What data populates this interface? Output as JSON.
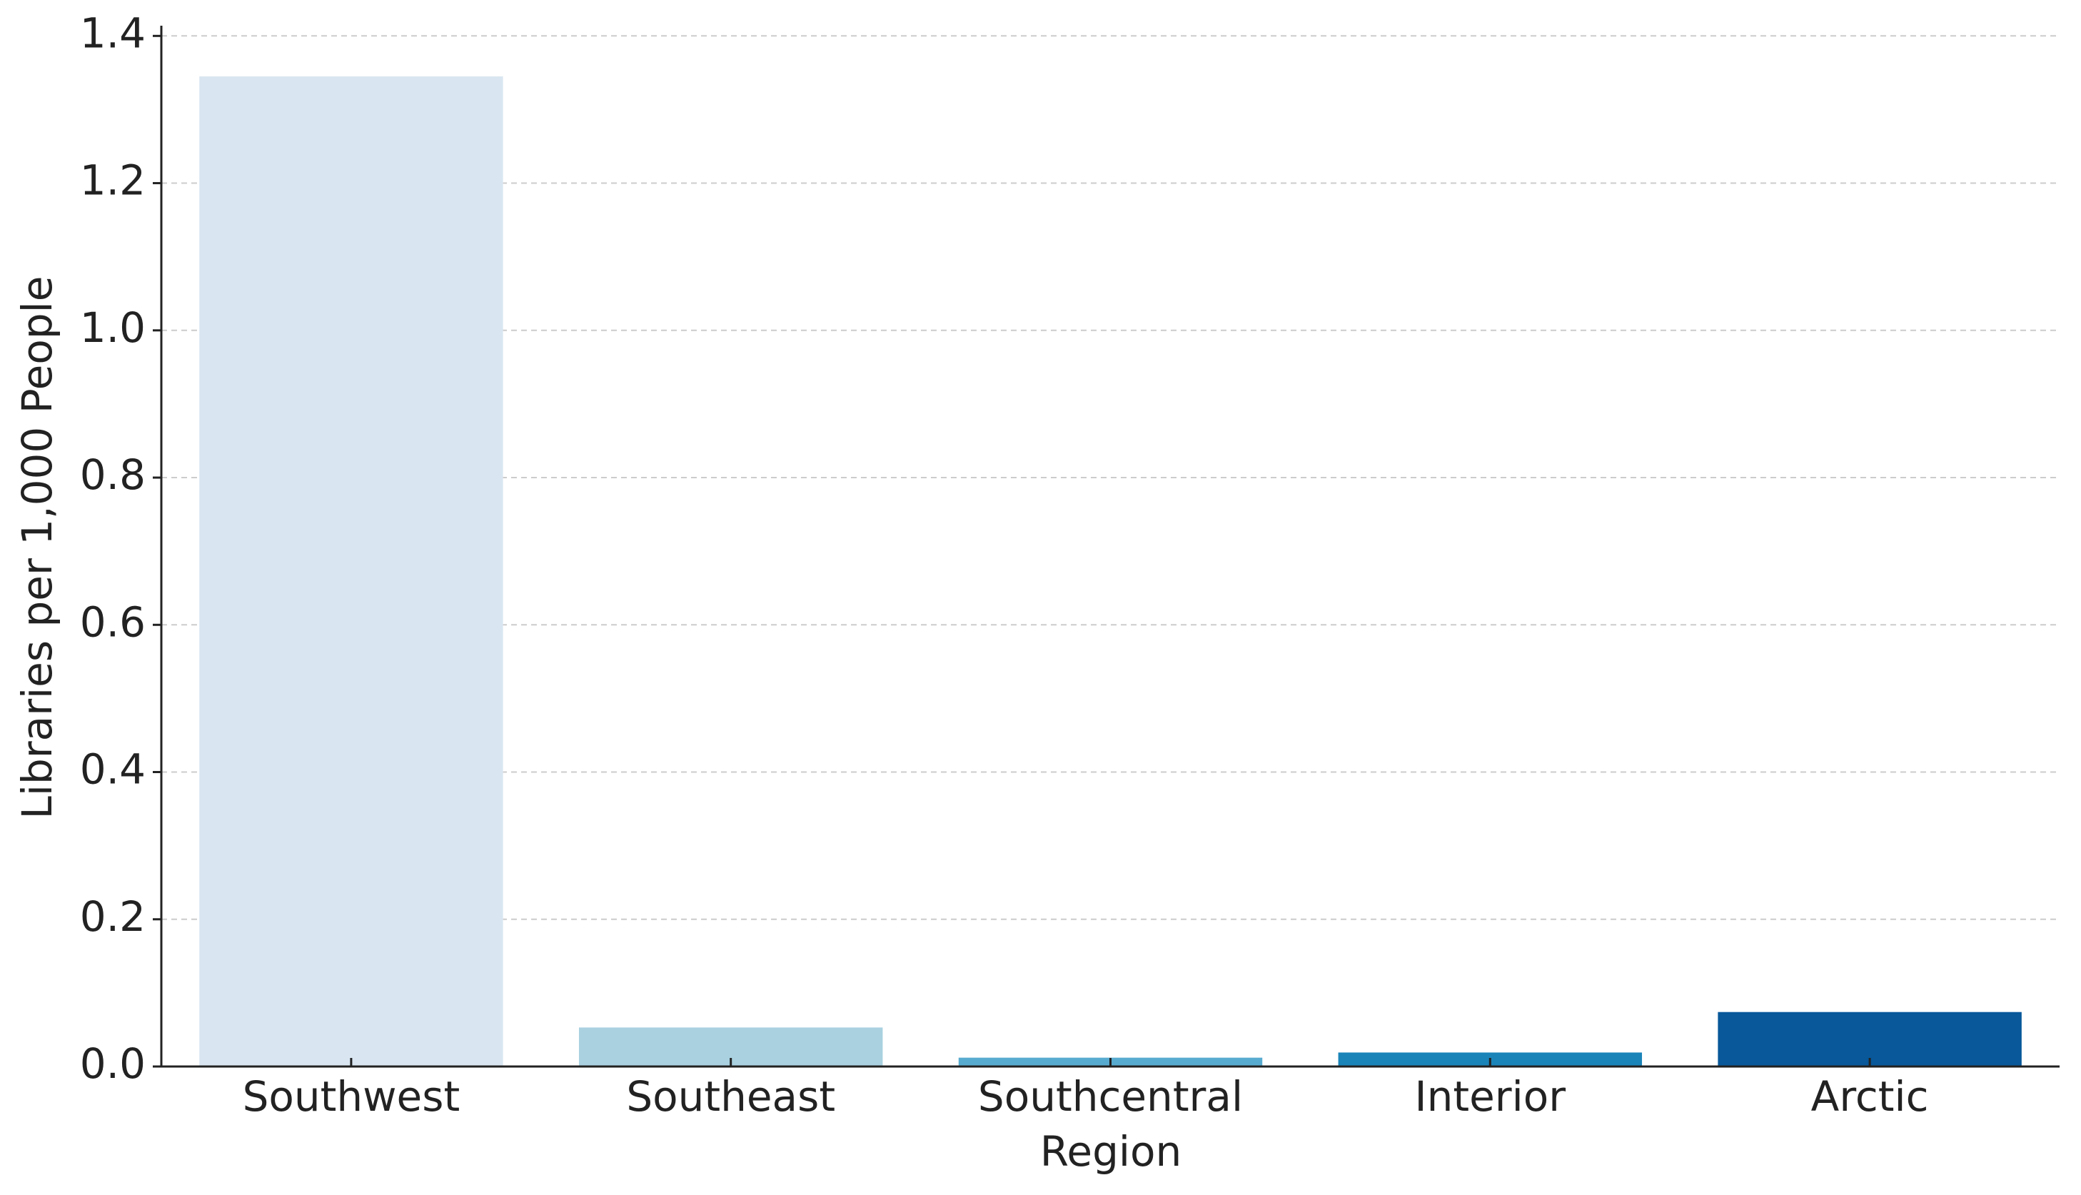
{
  "chart_data": {
    "type": "bar",
    "x_label": "Region",
    "y_label": "Libraries per 1,000 People",
    "categories": [
      "Southwest",
      "Southeast",
      "Southcentral",
      "Interior",
      "Arctic"
    ],
    "values": [
      1.345,
      0.053,
      0.012,
      0.019,
      0.074
    ],
    "colors": [
      "#d9e6f1",
      "#a9d1e0",
      "#58abd0",
      "#1a84b8",
      "#08589a"
    ],
    "ylim": [
      0,
      1.41
    ],
    "yticks": [
      {
        "value": 0,
        "label": "0.0"
      },
      0.2,
      0.4,
      0.6,
      0.8,
      {
        "value": 1,
        "label": "1.0"
      },
      1.2,
      1.4
    ],
    "grid": true
  }
}
